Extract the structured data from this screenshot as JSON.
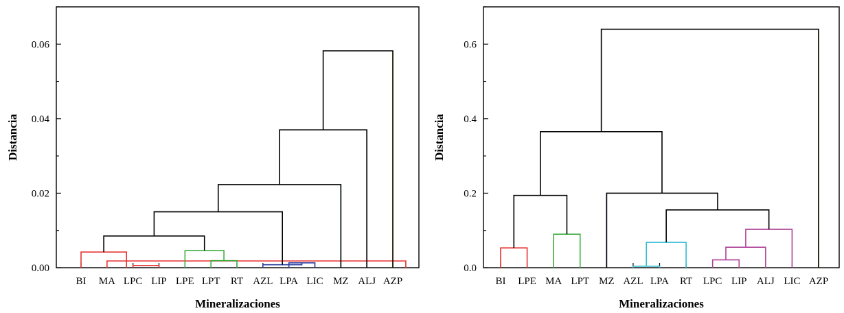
{
  "chart_data": [
    {
      "type": "dendrogram",
      "xlabel": "Mineralizaciones",
      "ylabel": "Distancia",
      "ylim": [
        0,
        0.07
      ],
      "yticks": [
        0.0,
        0.02,
        0.04,
        0.06
      ],
      "ytick_labels": [
        "0.00",
        "0.02",
        "0.04",
        "0.06"
      ],
      "leaves": [
        "BI",
        "MA",
        "LPC",
        "LIP",
        "LPE",
        "LPT",
        "RT",
        "AZL",
        "LPA",
        "LIC",
        "MZ",
        "ALJ",
        "AZP"
      ],
      "links": [
        {
          "left": 2,
          "right": 3,
          "height": 0.0006,
          "color": "#e8312f"
        },
        {
          "left": 1,
          "right": 12.5,
          "height": 0.0018,
          "color": "#e8312f"
        },
        {
          "left": 0,
          "right": 1.75,
          "height": 0.0042,
          "color": "#e8312f"
        },
        {
          "left": 5,
          "right": 6,
          "height": 0.0019,
          "color": "#3fae3f"
        },
        {
          "left": 4,
          "right": 5.5,
          "height": 0.0046,
          "color": "#3fae3f"
        },
        {
          "left": 8,
          "right": 9,
          "height": 0.0013,
          "color": "#2b3f9e"
        },
        {
          "left": 7,
          "right": 8.5,
          "height": 0.0008,
          "color": "#2b3f9e"
        },
        {
          "left": 0.875,
          "right": 4.75,
          "height": 0.0085,
          "color": "#000000"
        },
        {
          "left": 2.8125,
          "right": 7.75,
          "height": 0.015,
          "color": "#000000"
        },
        {
          "left": 5.28,
          "right": 10,
          "height": 0.0223,
          "color": "#000000"
        },
        {
          "left": 7.64,
          "right": 11,
          "height": 0.037,
          "color": "#000000"
        },
        {
          "left": 9.32,
          "right": 12,
          "height": 0.0582,
          "color": "#000000"
        }
      ],
      "leaf_stems": [
        {
          "leaf": 10,
          "top": 0.0223,
          "color": "#33bcd4"
        },
        {
          "leaf": 11,
          "top": 0.037,
          "color": "#b0449a"
        },
        {
          "leaf": 12,
          "top": 0.0582,
          "color": "#e8e43a"
        }
      ]
    },
    {
      "type": "dendrogram",
      "xlabel": "Mineralizaciones",
      "ylabel": "Distancia",
      "ylim": [
        0,
        0.7
      ],
      "yticks": [
        0.0,
        0.2,
        0.4,
        0.6
      ],
      "ytick_labels": [
        "0.0",
        "0.2",
        "0.4",
        "0.6"
      ],
      "leaves": [
        "BI",
        "LPE",
        "MA",
        "LPT",
        "MZ",
        "AZL",
        "LPA",
        "RT",
        "LPC",
        "LIP",
        "ALJ",
        "LIC",
        "AZP"
      ],
      "links": [
        {
          "left": 0,
          "right": 1,
          "height": 0.053,
          "color": "#e8312f"
        },
        {
          "left": 2,
          "right": 3,
          "height": 0.09,
          "color": "#3fae3f"
        },
        {
          "left": 0.5,
          "right": 2.5,
          "height": 0.194,
          "color": "#000000"
        },
        {
          "left": 5,
          "right": 6,
          "height": 0.004,
          "color": "#33bcd4"
        },
        {
          "left": 5.5,
          "right": 7,
          "height": 0.068,
          "color": "#33bcd4"
        },
        {
          "left": 8,
          "right": 9,
          "height": 0.021,
          "color": "#b0449a"
        },
        {
          "left": 8.5,
          "right": 10,
          "height": 0.055,
          "color": "#b0449a"
        },
        {
          "left": 9.25,
          "right": 11,
          "height": 0.103,
          "color": "#b0449a"
        },
        {
          "left": 6.25,
          "right": 10.125,
          "height": 0.155,
          "color": "#000000"
        },
        {
          "left": 4,
          "right": 8.19,
          "height": 0.2,
          "color": "#000000"
        },
        {
          "left": 1.5,
          "right": 6.09,
          "height": 0.365,
          "color": "#000000"
        },
        {
          "left": 3.8,
          "right": 12,
          "height": 0.64,
          "color": "#000000"
        }
      ],
      "leaf_stems": [
        {
          "leaf": 4,
          "top": 0.2,
          "color": "#2b3f9e"
        },
        {
          "leaf": 12,
          "top": 0.64,
          "color": "#e8e43a"
        }
      ]
    }
  ]
}
